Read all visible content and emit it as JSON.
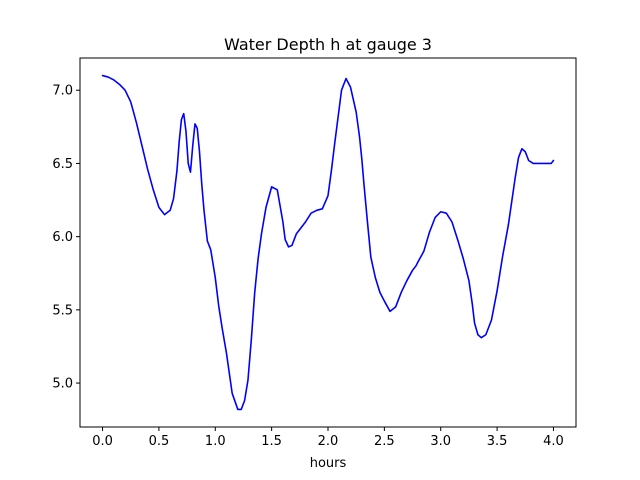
{
  "chart_data": {
    "type": "line",
    "title": "Water Depth h at gauge 3",
    "xlabel": "hours",
    "ylabel": "",
    "xlim": [
      -0.2,
      4.2
    ],
    "ylim": [
      4.7,
      7.22
    ],
    "xticks": [
      0.0,
      0.5,
      1.0,
      1.5,
      2.0,
      2.5,
      3.0,
      3.5,
      4.0
    ],
    "xtick_labels": [
      "0.0",
      "0.5",
      "1.0",
      "1.5",
      "2.0",
      "2.5",
      "3.0",
      "3.5",
      "4.0"
    ],
    "yticks": [
      5.0,
      5.5,
      6.0,
      6.5,
      7.0
    ],
    "ytick_labels": [
      "5.0",
      "5.5",
      "6.0",
      "6.5",
      "7.0"
    ],
    "grid": false,
    "legend": "none",
    "series": [
      {
        "color": "#0000ff",
        "x": [
          0.0,
          0.05,
          0.1,
          0.15,
          0.2,
          0.25,
          0.3,
          0.35,
          0.4,
          0.45,
          0.5,
          0.55,
          0.6,
          0.63,
          0.66,
          0.68,
          0.7,
          0.72,
          0.74,
          0.76,
          0.78,
          0.8,
          0.82,
          0.84,
          0.86,
          0.88,
          0.9,
          0.93,
          0.96,
          1.0,
          1.03,
          1.06,
          1.1,
          1.15,
          1.2,
          1.23,
          1.26,
          1.29,
          1.32,
          1.35,
          1.38,
          1.41,
          1.45,
          1.5,
          1.55,
          1.6,
          1.62,
          1.65,
          1.68,
          1.72,
          1.76,
          1.8,
          1.85,
          1.9,
          1.95,
          2.0,
          2.03,
          2.06,
          2.09,
          2.12,
          2.16,
          2.2,
          2.25,
          2.28,
          2.3,
          2.32,
          2.35,
          2.38,
          2.42,
          2.46,
          2.5,
          2.55,
          2.6,
          2.65,
          2.7,
          2.75,
          2.78,
          2.8,
          2.85,
          2.9,
          2.95,
          3.0,
          3.05,
          3.1,
          3.15,
          3.2,
          3.25,
          3.28,
          3.3,
          3.33,
          3.36,
          3.4,
          3.45,
          3.5,
          3.55,
          3.6,
          3.63,
          3.66,
          3.69,
          3.72,
          3.75,
          3.78,
          3.82,
          3.86,
          3.9,
          3.93,
          3.96,
          3.98,
          4.0
        ],
        "y": [
          7.1,
          7.09,
          7.07,
          7.04,
          7.0,
          6.92,
          6.78,
          6.62,
          6.46,
          6.32,
          6.2,
          6.15,
          6.18,
          6.26,
          6.45,
          6.65,
          6.8,
          6.84,
          6.72,
          6.5,
          6.44,
          6.62,
          6.77,
          6.74,
          6.58,
          6.36,
          6.18,
          5.97,
          5.91,
          5.72,
          5.53,
          5.38,
          5.2,
          4.93,
          4.82,
          4.82,
          4.88,
          5.02,
          5.3,
          5.62,
          5.85,
          6.02,
          6.2,
          6.34,
          6.32,
          6.1,
          5.98,
          5.93,
          5.94,
          6.02,
          6.06,
          6.1,
          6.16,
          6.18,
          6.19,
          6.28,
          6.45,
          6.64,
          6.82,
          7.0,
          7.08,
          7.02,
          6.85,
          6.68,
          6.53,
          6.35,
          6.1,
          5.86,
          5.72,
          5.62,
          5.56,
          5.49,
          5.52,
          5.62,
          5.7,
          5.77,
          5.8,
          5.83,
          5.9,
          6.03,
          6.13,
          6.17,
          6.16,
          6.1,
          5.98,
          5.85,
          5.7,
          5.54,
          5.41,
          5.33,
          5.31,
          5.33,
          5.43,
          5.63,
          5.87,
          6.08,
          6.24,
          6.4,
          6.54,
          6.6,
          6.58,
          6.52,
          6.5,
          6.5,
          6.5,
          6.5,
          6.5,
          6.5,
          6.52
        ]
      }
    ]
  }
}
